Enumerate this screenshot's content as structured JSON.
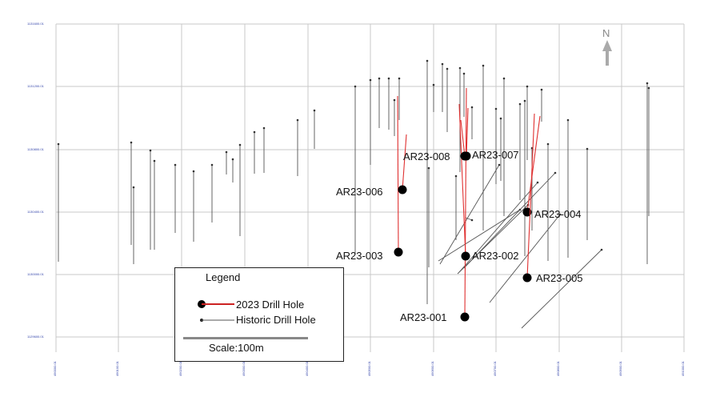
{
  "map": {
    "north_label": "N",
    "y_axis_labels": [
      "1131600.01",
      "1131200.01",
      "1130800.01",
      "1130400.01",
      "1130000.01",
      "1129600.01"
    ],
    "x_axis_labels": [
      "490000.01",
      "490100.01",
      "490200.01",
      "490300.01",
      "490400.01",
      "490500.01",
      "490600.01",
      "490700.01",
      "490800.01",
      "490900.01",
      "491000.01"
    ],
    "colors": {
      "new_hole": "#e03030",
      "historic_hole": "#555555",
      "grid": "#c8c8c8",
      "collar": "#000000"
    },
    "drill_holes_2023": [
      {
        "id": "AR23-001"
      },
      {
        "id": "AR23-002"
      },
      {
        "id": "AR23-003"
      },
      {
        "id": "AR23-004"
      },
      {
        "id": "AR23-005"
      },
      {
        "id": "AR23-006"
      },
      {
        "id": "AR23-007"
      },
      {
        "id": "AR23-008"
      }
    ]
  },
  "legend": {
    "title": "Legend",
    "new_hole_label": "2023 Drill Hole",
    "historic_hole_label": "Historic Drill Hole",
    "scale_label": "Scale:100m"
  }
}
